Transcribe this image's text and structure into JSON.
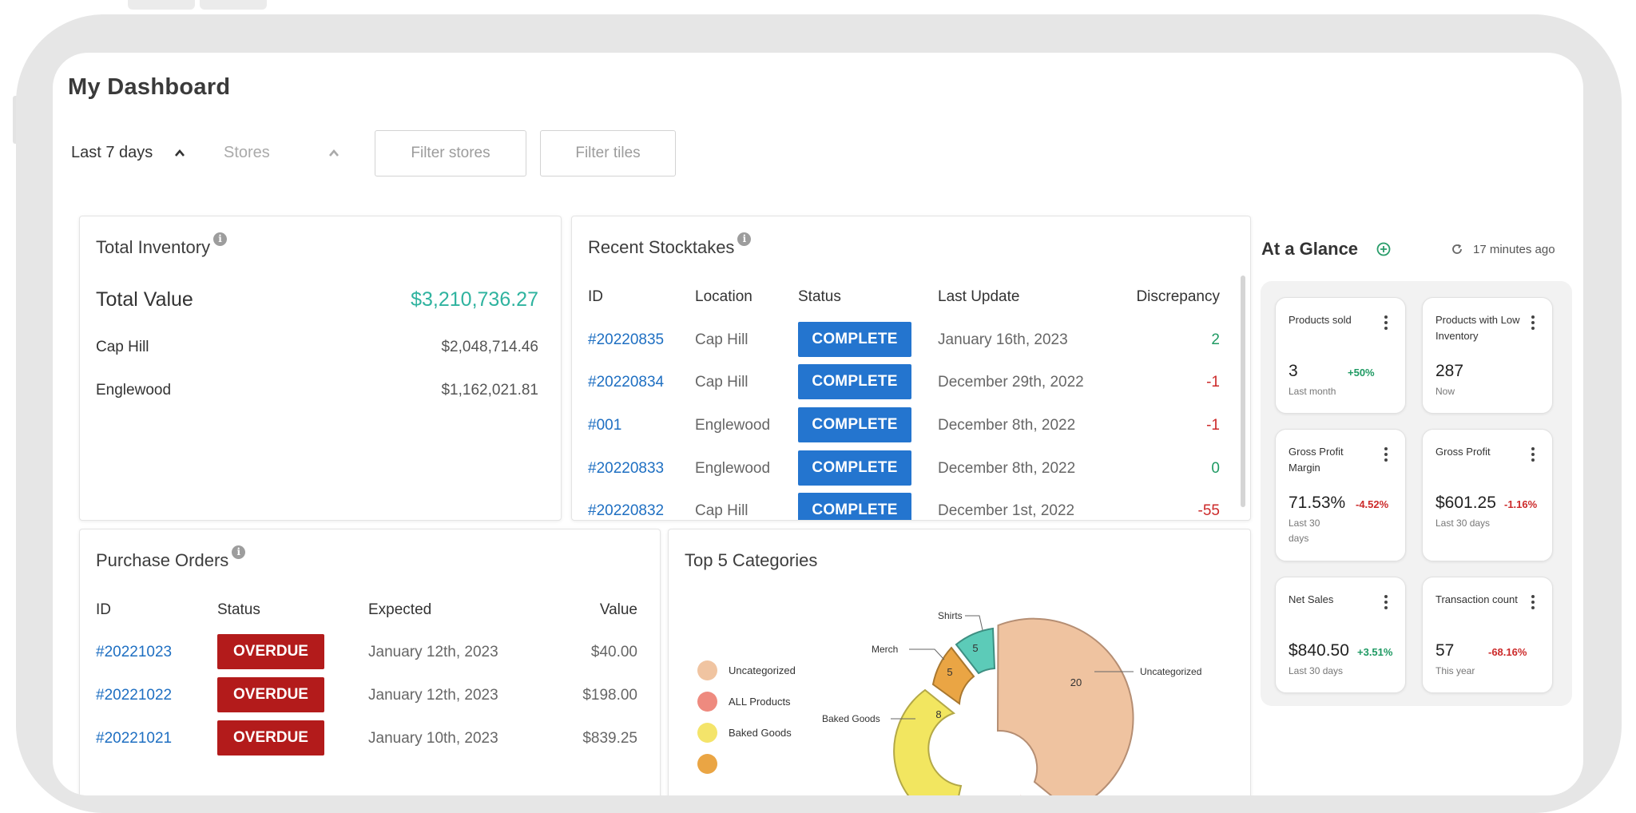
{
  "dashboard": {
    "title": "My Dashboard",
    "date_filter": "Last 7 days",
    "store_filter_placeholder": "Stores",
    "filter_stores_label": "Filter stores",
    "filter_tiles_label": "Filter tiles"
  },
  "total_inventory": {
    "title": "Total Inventory",
    "total_label": "Total Value",
    "total_value": "$3,210,736.27",
    "rows": [
      {
        "name": "Cap Hill",
        "value": "$2,048,714.46"
      },
      {
        "name": "Englewood",
        "value": "$1,162,021.81"
      }
    ]
  },
  "stocktakes": {
    "title": "Recent Stocktakes",
    "headers": [
      "ID",
      "Location",
      "Status",
      "Last Update",
      "Discrepancy"
    ],
    "rows": [
      {
        "id": "#20220835",
        "location": "Cap Hill",
        "status": "COMPLETE",
        "date": "January 16th, 2023",
        "discrepancy": "2"
      },
      {
        "id": "#20220834",
        "location": "Cap Hill",
        "status": "COMPLETE",
        "date": "December 29th, 2022",
        "discrepancy": "-1"
      },
      {
        "id": "#001",
        "location": "Englewood",
        "status": "COMPLETE",
        "date": "December 8th, 2022",
        "discrepancy": "-1"
      },
      {
        "id": "#20220833",
        "location": "Englewood",
        "status": "COMPLETE",
        "date": "December 8th, 2022",
        "discrepancy": "0"
      },
      {
        "id": "#20220832",
        "location": "Cap Hill",
        "status": "COMPLETE",
        "date": "December 1st, 2022",
        "discrepancy": "-55"
      }
    ]
  },
  "purchase_orders": {
    "title": "Purchase Orders",
    "headers": [
      "ID",
      "Status",
      "Expected",
      "Value"
    ],
    "rows": [
      {
        "id": "#20221023",
        "status": "OVERDUE",
        "expected": "January 12th, 2023",
        "value": "$40.00"
      },
      {
        "id": "#20221022",
        "status": "OVERDUE",
        "expected": "January 12th, 2023",
        "value": "$198.00"
      },
      {
        "id": "#20221021",
        "status": "OVERDUE",
        "expected": "January 10th, 2023",
        "value": "$839.25"
      }
    ]
  },
  "top_categories": {
    "title": "Top 5 Categories",
    "legend": [
      {
        "name": "Uncategorized",
        "color": "#f0c4a1"
      },
      {
        "name": "ALL Products",
        "color": "#ee8a7f"
      },
      {
        "name": "Baked Goods",
        "color": "#f4e46a"
      }
    ],
    "colors": {
      "uncategorized": "#efc3a0",
      "all_products": "#f17b65",
      "baked_goods": "#f2e660",
      "merch": "#eaa544",
      "shirts": "#5ccbb8"
    },
    "slice_labels": [
      "Uncategorized",
      "Shirts",
      "Merch",
      "Baked Goods"
    ],
    "slice_values": [
      "20",
      "5",
      "5",
      "8"
    ]
  },
  "glance": {
    "title": "At a Glance",
    "updated": "17 minutes ago",
    "tiles": [
      {
        "title": "Products sold",
        "value": "3",
        "change": "+50%",
        "trend": "pos",
        "sub": "Last month"
      },
      {
        "title": "Products with Low Inventory",
        "value": "287",
        "change": "",
        "trend": "",
        "sub": "Now"
      },
      {
        "title": "Gross Profit Margin",
        "value": "71.53%",
        "change": "-4.52%",
        "trend": "neg",
        "sub": "Last 30 days"
      },
      {
        "title": "Gross Profit",
        "value": "$601.25",
        "change": "-1.16%",
        "trend": "neg",
        "sub": "Last 30 days"
      },
      {
        "title": "Net Sales",
        "value": "$840.50",
        "change": "+3.51%",
        "trend": "pos",
        "sub": "Last 30 days"
      },
      {
        "title": "Transaction count",
        "value": "57",
        "change": "-68.16%",
        "trend": "neg",
        "sub": "This year"
      }
    ]
  },
  "colors": {
    "accent_teal": "#2fb39f",
    "link_blue": "#1e6fc2",
    "complete_blue": "#2475cf",
    "overdue_red": "#b31b1b"
  }
}
